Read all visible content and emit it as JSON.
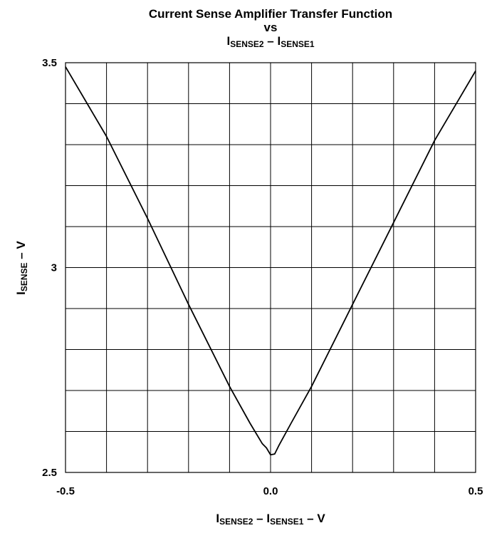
{
  "title": {
    "line1": "Current Sense Amplifier Transfer Function",
    "line2": "vs",
    "line3": {
      "i1": "I",
      "s1": "SENSE2",
      "sep": " – ",
      "i2": "I",
      "s2": "SENSE1"
    }
  },
  "xaxis_label": {
    "i1": "I",
    "s1": "SENSE2",
    "sep": " – ",
    "i2": "I",
    "s2": "SENSE1",
    "unit": " – V"
  },
  "yaxis_label": {
    "i": "I",
    "s": "SENSE",
    "unit": " – V"
  },
  "chart_data": {
    "type": "line",
    "title": "Current Sense Amplifier Transfer Function vs ISENSE2 – ISENSE1",
    "xlabel": "ISENSE2 – ISENSE1 – V",
    "ylabel": "ISENSE – V",
    "xlim": [
      -0.5,
      0.5
    ],
    "ylim": [
      2.5,
      3.5
    ],
    "grid": true,
    "x_ticks": [
      {
        "value": -0.5,
        "label": "-0.5"
      },
      {
        "value": 0.0,
        "label": "0.0"
      },
      {
        "value": 0.5,
        "label": "0.5"
      }
    ],
    "y_ticks": [
      {
        "value": 2.5,
        "label": "2.5"
      },
      {
        "value": 3.0,
        "label": "3"
      },
      {
        "value": 3.5,
        "label": "3.5"
      }
    ],
    "x_grid_step": 0.1,
    "y_grid_step": 0.1,
    "series": [
      {
        "color": "#000000",
        "points": [
          [
            -0.5,
            3.49
          ],
          [
            -0.4,
            3.32
          ],
          [
            -0.3,
            3.12
          ],
          [
            -0.2,
            2.91
          ],
          [
            -0.1,
            2.71
          ],
          [
            -0.05,
            2.62
          ],
          [
            -0.02,
            2.57
          ],
          [
            -0.01,
            2.56
          ],
          [
            0.0,
            2.543
          ],
          [
            0.01,
            2.545
          ],
          [
            0.02,
            2.565
          ],
          [
            0.05,
            2.62
          ],
          [
            0.1,
            2.71
          ],
          [
            0.2,
            2.91
          ],
          [
            0.3,
            3.11
          ],
          [
            0.4,
            3.31
          ],
          [
            0.5,
            3.48
          ]
        ]
      }
    ]
  }
}
